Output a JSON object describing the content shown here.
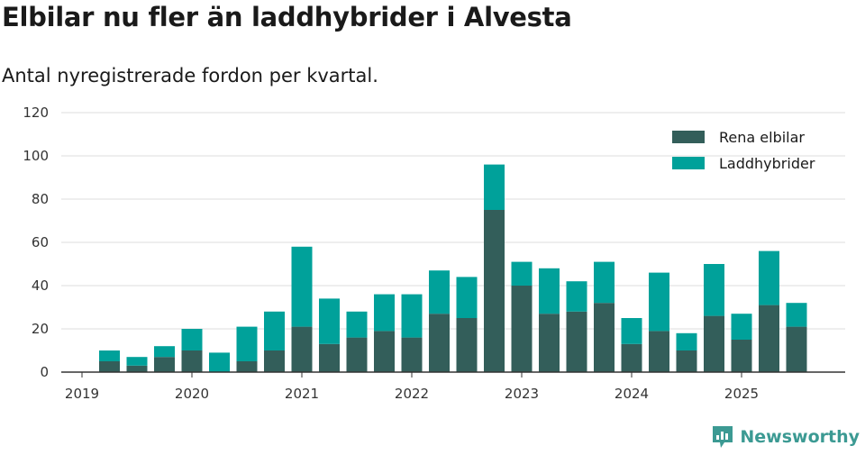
{
  "header": {
    "title": "Elbilar nu fler än laddhybrider i Alvesta",
    "subtitle": "Antal nyregistrerade fordon per kvartal."
  },
  "brand": {
    "name": "Newsworthy",
    "icon": "newsworthy-logo-icon"
  },
  "colors": {
    "rena": "#335e5a",
    "ladd": "#00a19a",
    "grid": "#dddddd",
    "axis": "#333333"
  },
  "chart_data": {
    "type": "bar",
    "stacked": true,
    "title": "Elbilar nu fler än laddhybrider i Alvesta",
    "subtitle": "Antal nyregistrerade fordon per kvartal.",
    "xlabel": "",
    "ylabel": "",
    "ylim": [
      0,
      120
    ],
    "yticks": [
      0,
      20,
      40,
      60,
      80,
      100,
      120
    ],
    "xticks": [
      "2019",
      "2020",
      "2021",
      "2022",
      "2023",
      "2024",
      "2025"
    ],
    "grid": true,
    "legend_position": "top-right",
    "categories": [
      "2019 Q2",
      "2019 Q3",
      "2019 Q4",
      "2020 Q1",
      "2020 Q2",
      "2020 Q3",
      "2020 Q4",
      "2021 Q1",
      "2021 Q2",
      "2021 Q3",
      "2021 Q4",
      "2022 Q1",
      "2022 Q2",
      "2022 Q3",
      "2022 Q4",
      "2023 Q1",
      "2023 Q2",
      "2023 Q3",
      "2023 Q4",
      "2024 Q1",
      "2024 Q2",
      "2024 Q3",
      "2024 Q4",
      "2025 Q1",
      "2025 Q2",
      "2025 Q3"
    ],
    "series": [
      {
        "name": "Rena elbilar",
        "values": [
          5,
          3,
          7,
          10,
          0,
          5,
          10,
          21,
          13,
          16,
          19,
          16,
          27,
          25,
          75,
          40,
          27,
          28,
          32,
          13,
          19,
          10,
          26,
          15,
          31,
          21
        ]
      },
      {
        "name": "Laddhybrider",
        "values": [
          5,
          4,
          5,
          10,
          9,
          16,
          18,
          37,
          21,
          12,
          17,
          20,
          20,
          19,
          21,
          11,
          21,
          14,
          19,
          12,
          27,
          8,
          24,
          12,
          25,
          11
        ]
      }
    ]
  }
}
